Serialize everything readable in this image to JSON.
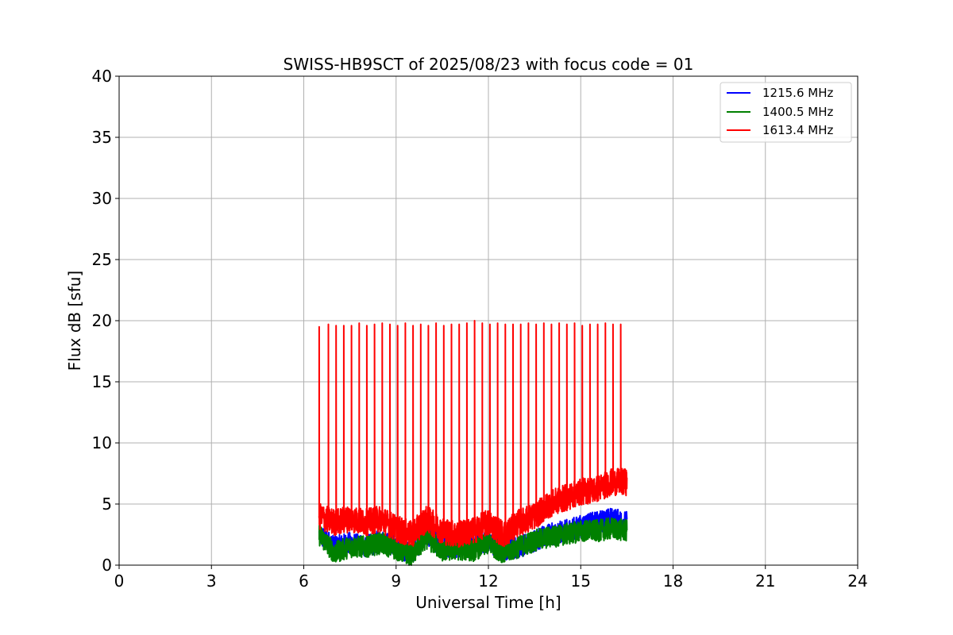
{
  "chart_data": {
    "type": "line",
    "title": "SWISS-HB9SCT of 2025/08/23 with focus code = 01",
    "xlabel": "Universal Time [h]",
    "ylabel": "Flux dB [sfu]",
    "xlim": [
      0,
      24
    ],
    "ylim": [
      0,
      40
    ],
    "xticks": [
      0,
      3,
      6,
      9,
      12,
      15,
      18,
      21,
      24
    ],
    "yticks": [
      0,
      5,
      10,
      15,
      20,
      25,
      30,
      35,
      40
    ],
    "grid": true,
    "legend_position": "top-right",
    "series": [
      {
        "name": "1215.6 MHz",
        "color": "#0000ff",
        "x": [
          6.5,
          7.0,
          7.5,
          8.0,
          8.5,
          9.0,
          9.5,
          10.0,
          10.5,
          11.0,
          11.5,
          12.0,
          12.5,
          13.0,
          13.5,
          14.0,
          14.5,
          15.0,
          15.5,
          16.0,
          16.5
        ],
        "y": [
          2.5,
          1.5,
          1.8,
          1.5,
          2.0,
          1.5,
          1.0,
          2.5,
          1.5,
          1.5,
          1.5,
          2.0,
          1.2,
          1.5,
          2.0,
          2.5,
          2.8,
          3.2,
          3.5,
          3.8,
          3.5
        ]
      },
      {
        "name": "1400.5 MHz",
        "color": "#008000",
        "x": [
          6.5,
          7.0,
          7.5,
          8.0,
          8.5,
          9.0,
          9.5,
          10.0,
          10.5,
          11.0,
          11.5,
          12.0,
          12.5,
          13.0,
          13.5,
          14.0,
          14.5,
          15.0,
          15.5,
          16.0,
          16.5
        ],
        "y": [
          2.5,
          1.0,
          1.5,
          1.5,
          1.8,
          1.3,
          0.8,
          2.2,
          1.2,
          1.3,
          1.2,
          1.8,
          1.0,
          1.5,
          2.0,
          2.3,
          2.5,
          2.8,
          2.8,
          3.0,
          2.8
        ]
      },
      {
        "name": "1613.4 MHz",
        "color": "#ff0000",
        "x": [
          6.5,
          7.0,
          7.5,
          8.0,
          8.5,
          9.0,
          9.5,
          10.0,
          10.5,
          11.0,
          11.5,
          12.0,
          12.5,
          13.0,
          13.5,
          14.0,
          14.5,
          15.0,
          15.5,
          16.0,
          16.5
        ],
        "y": [
          4.0,
          3.5,
          3.8,
          3.5,
          3.8,
          3.0,
          2.5,
          3.8,
          2.8,
          2.5,
          2.8,
          3.5,
          2.5,
          3.5,
          4.0,
          5.0,
          5.5,
          6.0,
          6.2,
          6.8,
          6.8
        ],
        "spikes": {
          "x": [
            6.5,
            6.8,
            7.05,
            7.3,
            7.55,
            7.8,
            8.05,
            8.3,
            8.55,
            8.8,
            9.05,
            9.3,
            9.55,
            9.8,
            10.05,
            10.3,
            10.55,
            10.8,
            11.05,
            11.3,
            11.55,
            11.8,
            12.05,
            12.3,
            12.55,
            12.8,
            13.05,
            13.3,
            13.55,
            13.8,
            14.05,
            14.3,
            14.55,
            14.8,
            15.05,
            15.3,
            15.55,
            15.8,
            16.05,
            16.3
          ],
          "y": [
            19.5,
            19.7,
            19.6,
            19.6,
            19.6,
            19.8,
            19.6,
            19.7,
            19.8,
            19.7,
            19.6,
            19.8,
            19.6,
            19.7,
            19.6,
            19.8,
            19.6,
            19.7,
            19.7,
            19.8,
            20.0,
            19.8,
            19.7,
            19.8,
            19.7,
            19.7,
            19.7,
            19.8,
            19.7,
            19.8,
            19.7,
            19.8,
            19.7,
            19.8,
            19.6,
            19.7,
            19.7,
            19.8,
            19.7,
            19.7
          ]
        }
      }
    ]
  }
}
